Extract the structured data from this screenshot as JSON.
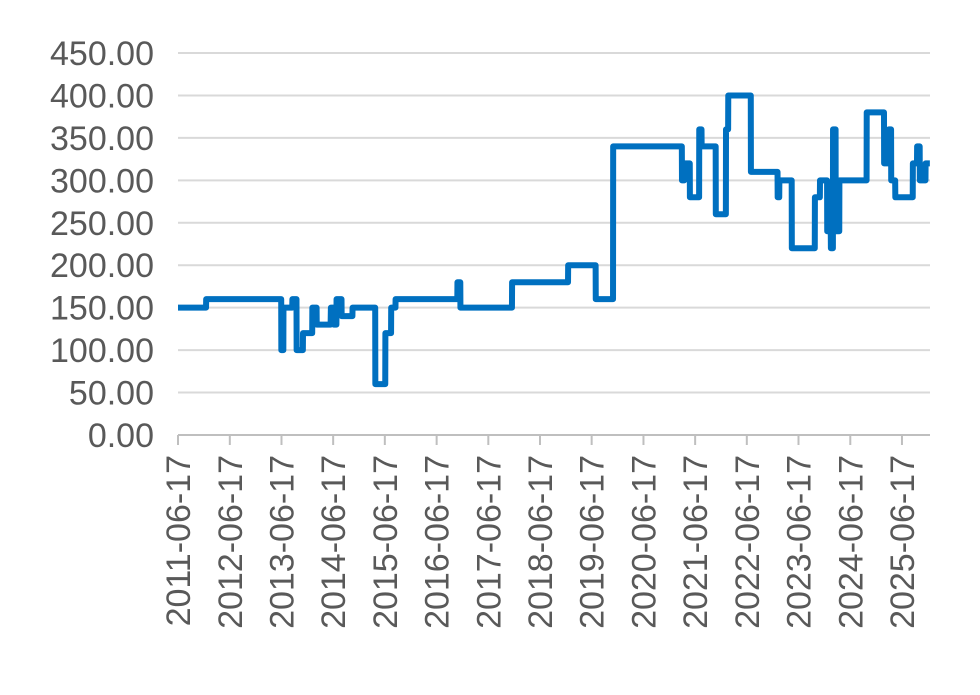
{
  "chart_data": {
    "type": "line",
    "title": "",
    "xlabel": "",
    "ylabel": "",
    "ylim": [
      0,
      450
    ],
    "y_ticks": [
      "0.00",
      "50.00",
      "100.00",
      "150.00",
      "200.00",
      "250.00",
      "300.00",
      "350.00",
      "400.00",
      "450.00"
    ],
    "x_ticks": [
      "2011-06-17",
      "2012-06-17",
      "2013-06-17",
      "2014-06-17",
      "2015-06-17",
      "2016-06-17",
      "2017-06-17",
      "2018-06-17",
      "2019-06-17",
      "2020-06-17",
      "2021-06-17",
      "2022-06-17",
      "2023-06-17",
      "2024-06-17",
      "2025-06-17"
    ],
    "xlim": [
      "2011-06-17",
      "2026-01-01"
    ],
    "grid": true,
    "legend": "none",
    "line_color": "#0070c0",
    "series": [
      {
        "x": [
          "2011-06-17",
          "2012-01-01",
          "2012-01-02",
          "2013-06-15",
          "2013-06-16",
          "2013-06-30",
          "2013-07-01",
          "2013-09-01",
          "2013-09-02",
          "2013-10-01",
          "2013-10-02",
          "2013-11-15",
          "2013-11-16",
          "2014-01-20",
          "2014-01-21",
          "2014-02-20",
          "2014-02-21",
          "2014-03-05",
          "2014-03-06",
          "2014-05-30",
          "2014-06-01",
          "2014-06-20",
          "2014-06-21",
          "2014-07-10",
          "2014-07-11",
          "2014-08-15",
          "2014-08-16",
          "2014-10-31",
          "2014-11-01",
          "2015-04-10",
          "2015-04-11",
          "2015-06-20",
          "2015-06-21",
          "2015-07-31",
          "2015-08-01",
          "2015-08-31",
          "2015-09-01",
          "2015-10-10",
          "2015-10-11",
          "2016-11-10",
          "2016-11-11",
          "2016-12-01",
          "2016-12-02",
          "2017-11-10",
          "2017-11-11",
          "2017-12-01",
          "2017-12-02",
          "2018-11-15",
          "2018-11-16",
          "2019-01-01",
          "2019-01-02",
          "2019-07-15",
          "2019-07-16",
          "2019-11-15",
          "2019-11-16",
          "2021-03-15",
          "2021-03-16",
          "2021-04-01",
          "2021-04-02",
          "2021-05-10",
          "2021-05-11",
          "2021-07-15",
          "2021-07-16",
          "2021-08-01",
          "2021-08-02",
          "2021-11-09",
          "2021-11-10",
          "2022-01-20",
          "2022-01-21",
          "2022-02-05",
          "2022-02-06",
          "2022-07-15",
          "2022-07-16",
          "2023-01-20",
          "2023-01-21",
          "2023-02-01",
          "2023-02-02",
          "2023-04-30",
          "2023-05-01",
          "2023-10-10",
          "2023-10-11",
          "2023-11-15",
          "2023-11-16",
          "2024-01-05",
          "2024-01-06",
          "2024-01-31",
          "2024-02-01",
          "2024-02-15",
          "2024-02-16",
          "2024-03-05",
          "2024-03-06",
          "2024-03-31",
          "2024-04-01",
          "2024-10-10",
          "2024-10-11",
          "2025-02-10",
          "2025-02-11",
          "2025-03-15",
          "2025-03-16",
          "2025-04-01",
          "2025-04-02",
          "2025-04-30",
          "2025-05-01",
          "2025-09-01",
          "2025-09-02",
          "2025-10-01",
          "2025-10-02",
          "2025-10-20",
          "2025-10-21",
          "2025-11-30",
          "2025-12-01",
          "2025-12-31"
        ],
        "values": [
          150,
          150,
          160,
          160,
          100,
          100,
          150,
          150,
          160,
          160,
          100,
          100,
          120,
          120,
          150,
          150,
          130,
          130,
          130,
          130,
          150,
          150,
          130,
          130,
          160,
          160,
          140,
          140,
          150,
          150,
          60,
          60,
          120,
          120,
          150,
          150,
          160,
          160,
          160,
          160,
          180,
          180,
          150,
          150,
          150,
          150,
          180,
          180,
          180,
          180,
          200,
          200,
          160,
          160,
          340,
          340,
          300,
          300,
          320,
          320,
          280,
          280,
          360,
          360,
          340,
          340,
          260,
          260,
          360,
          360,
          400,
          400,
          310,
          310,
          280,
          280,
          300,
          300,
          220,
          220,
          280,
          280,
          300,
          300,
          240,
          240,
          220,
          220,
          360,
          360,
          240,
          240,
          300,
          300,
          380,
          380,
          320,
          320,
          360,
          360,
          300,
          300,
          280,
          280,
          320,
          320,
          340,
          340,
          300,
          300,
          320,
          320
        ]
      }
    ]
  }
}
